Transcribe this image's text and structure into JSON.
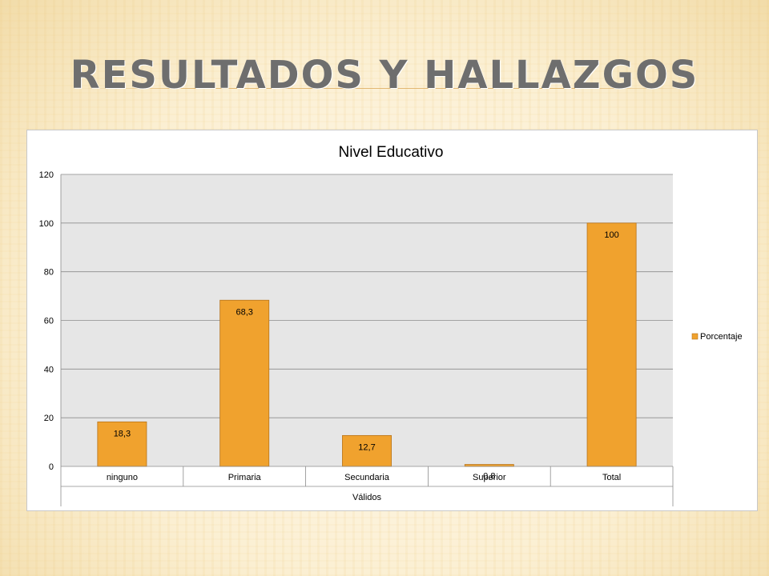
{
  "slide": {
    "title": "Resultados y hallazgos"
  },
  "chart_data": {
    "type": "bar",
    "title": "Nivel Educativo",
    "categories": [
      "ninguno",
      "Primaria",
      "Secundaria",
      "Superior",
      "Total"
    ],
    "group_label": "Válidos",
    "series": [
      {
        "name": "Porcentaje",
        "values": [
          18.3,
          68.3,
          12.7,
          0.8,
          100
        ]
      }
    ],
    "data_labels": [
      "18,3",
      "68,3",
      "12,7",
      "0,8",
      "100"
    ],
    "y_ticks": [
      0,
      20,
      40,
      60,
      80,
      100,
      120
    ],
    "ylim": [
      0,
      120
    ],
    "grid": true,
    "legend_position": "right",
    "colors": {
      "bar": "#F0A22E",
      "bar_border": "#B8741A",
      "plot_bg": "#E6E6E6",
      "grid": "#8C8C8C"
    }
  }
}
